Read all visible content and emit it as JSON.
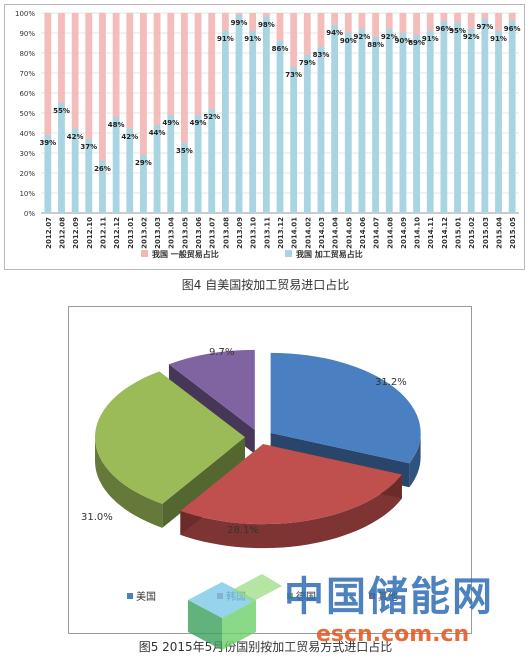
{
  "captions": {
    "figure4": "图4 自美国按加工贸易进口占比",
    "figure5": "图5 2015年5月份国别按加工贸易方式进口占比"
  },
  "watermark": {
    "title": "中国储能网",
    "url": "escn.com.cn"
  },
  "chart_data": [
    {
      "type": "bar",
      "stacked": true,
      "stack_mode": "percent",
      "title": "",
      "categories": [
        "2012.07",
        "2012.08",
        "2012.09",
        "2012.10",
        "2012.11",
        "2012.12",
        "2013.01",
        "2013.02",
        "2013.03",
        "2013.04",
        "2013.05",
        "2013.06",
        "2013.07",
        "2013.08",
        "2013.09",
        "2013.10",
        "2013.11",
        "2013.12",
        "2014.01",
        "2014.02",
        "2014.03",
        "2014.04",
        "2014.05",
        "2014.06",
        "2014.07",
        "2014.08",
        "2014.09",
        "2014.10",
        "2014.11",
        "2014.12",
        "2015.01",
        "2015.02",
        "2015.03",
        "2015.04",
        "2015.05"
      ],
      "series": [
        {
          "name": "我国 加工贸易占比",
          "color": "#a9d5e2",
          "values": [
            39,
            55,
            42,
            37,
            26,
            48,
            42,
            29,
            44,
            49,
            35,
            49,
            52,
            91,
            99,
            91,
            98,
            86,
            73,
            79,
            83,
            94,
            90,
            92,
            88,
            92,
            90,
            89,
            91,
            96,
            95,
            92,
            97,
            91,
            96
          ],
          "labels": [
            "39%",
            "55%",
            "42%",
            "37%",
            "26%",
            "48%",
            "42%",
            "29%",
            "44%",
            "49%",
            "35%",
            "49%",
            "52%",
            "91%",
            "99%",
            "91%",
            "98%",
            "86%",
            "73%",
            "79%",
            "83%",
            "94%",
            "90%",
            "92%",
            "88%",
            "92%",
            "90%",
            "89%",
            "91%",
            "96%",
            "95%",
            "92%",
            "97%",
            "91%",
            "96%"
          ]
        },
        {
          "name": "我国 一般贸易占比",
          "color": "#f2b6b4",
          "values": [
            61,
            45,
            58,
            63,
            74,
            52,
            58,
            71,
            56,
            51,
            65,
            51,
            48,
            9,
            1,
            9,
            2,
            14,
            27,
            21,
            17,
            6,
            10,
            8,
            12,
            8,
            10,
            11,
            9,
            4,
            5,
            8,
            3,
            9,
            4
          ]
        }
      ],
      "ylim": [
        0,
        100
      ],
      "yticks": [
        "0%",
        "10%",
        "20%",
        "30%",
        "40%",
        "50%",
        "60%",
        "70%",
        "80%",
        "90%",
        "100%"
      ],
      "grid": true,
      "legend_position": "bottom"
    },
    {
      "type": "pie",
      "style": "3d-exploded",
      "title": "",
      "categories": [
        "美国",
        "韩国",
        "德国",
        "其他"
      ],
      "values": [
        31.2,
        28.1,
        31.0,
        9.7
      ],
      "labels": [
        "31.2%",
        "28.1%",
        "31.0%",
        "9.7%"
      ],
      "colors": [
        "#4a7fc1",
        "#c0504d",
        "#9bbb59",
        "#8064a2"
      ],
      "legend_position": "bottom"
    }
  ]
}
